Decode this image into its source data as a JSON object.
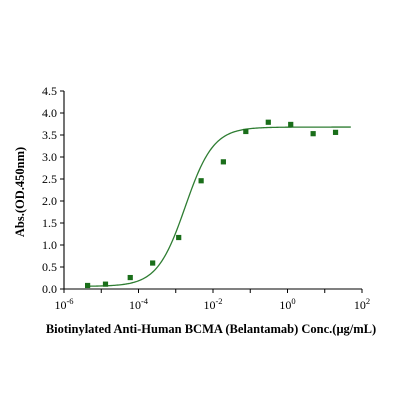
{
  "chart_data": {
    "type": "scatter",
    "title": "",
    "xlabel": "Biotinylated Anti-Human BCMA (Belantamab)  Conc.(μg/mL)",
    "ylabel": "Abs.(OD.450nm)",
    "x_scale": "log",
    "xlim": [
      1e-06,
      100
    ],
    "ylim": [
      0,
      4.5
    ],
    "x_ticks": [
      {
        "value": 1e-06,
        "base": "10",
        "exp": "-6"
      },
      {
        "value": 0.0001,
        "base": "10",
        "exp": "-4"
      },
      {
        "value": 0.01,
        "base": "10",
        "exp": "-2"
      },
      {
        "value": 1,
        "base": "10",
        "exp": "0"
      },
      {
        "value": 100,
        "base": "10",
        "exp": "2"
      }
    ],
    "y_ticks": [
      "0.0",
      "0.5",
      "1.0",
      "1.5",
      "2.0",
      "2.5",
      "3.0",
      "3.5",
      "4.0",
      "4.5"
    ],
    "grid": false,
    "legend": "none",
    "series": [
      {
        "x": [
          4.3e-06,
          1.3e-05,
          6e-05,
          0.00024,
          0.0012,
          0.0048,
          0.019,
          0.076,
          0.305,
          1.22,
          4.88,
          19.5
        ],
        "y": [
          0.08,
          0.11,
          0.26,
          0.59,
          1.17,
          2.46,
          2.89,
          3.58,
          3.79,
          3.74,
          3.53,
          3.56
        ]
      }
    ],
    "fit_curve": {
      "model": "4PL",
      "bottom": 0.06,
      "top": 3.68,
      "ec50": 0.0018,
      "hill": 1.15
    },
    "colors": {
      "points": "#1a6e1a",
      "curve": "#2e7d32",
      "axis": "#000000"
    }
  }
}
